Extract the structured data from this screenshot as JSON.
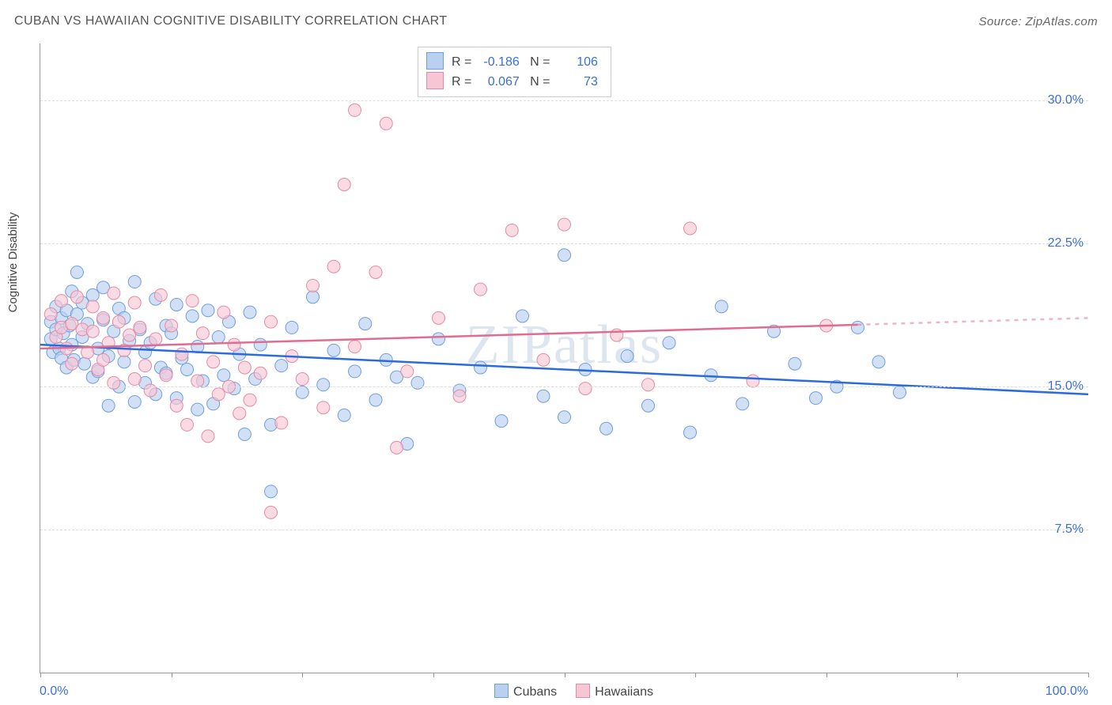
{
  "title": "CUBAN VS HAWAIIAN COGNITIVE DISABILITY CORRELATION CHART",
  "source": "Source: ZipAtlas.com",
  "watermark": "ZIPatlas",
  "ylabel": "Cognitive Disability",
  "chart": {
    "type": "scatter",
    "xlim": [
      0,
      100
    ],
    "ylim": [
      0,
      33
    ],
    "x_tick_positions": [
      0,
      12.5,
      25,
      37.5,
      50,
      62.5,
      75,
      87.5,
      100
    ],
    "x_tick_labels_show": [
      "0.0%",
      "",
      "",
      "",
      "",
      "",
      "",
      "",
      "100.0%"
    ],
    "y_gridlines": [
      7.5,
      15.0,
      22.5,
      30.0
    ],
    "y_tick_labels": [
      "7.5%",
      "15.0%",
      "22.5%",
      "30.0%"
    ],
    "grid_color": "#dddddd",
    "axis_color": "#999999",
    "background_color": "#ffffff",
    "marker_radius": 8,
    "marker_stroke_width": 1,
    "trend_line_width": 2.5
  },
  "series": [
    {
      "name": "Cubans",
      "fill": "#b9d0f0",
      "stroke": "#6f9fe0",
      "fill_opacity": 0.65,
      "R": "-0.186",
      "N": "106",
      "trend": {
        "y_at_x0": 17.2,
        "y_at_x100": 14.6,
        "dash_after_x": 100,
        "color": "#2b6adf"
      },
      "points": [
        [
          1,
          17.5
        ],
        [
          1,
          18.4
        ],
        [
          1.2,
          16.8
        ],
        [
          1.5,
          18
        ],
        [
          1.5,
          19.2
        ],
        [
          1.8,
          17
        ],
        [
          2,
          18.6
        ],
        [
          2,
          16.5
        ],
        [
          2.2,
          17.8
        ],
        [
          2.5,
          19
        ],
        [
          2.5,
          16
        ],
        [
          2.8,
          18.2
        ],
        [
          3,
          17.2
        ],
        [
          3,
          20
        ],
        [
          3.2,
          16.4
        ],
        [
          3.5,
          18.8
        ],
        [
          3.5,
          21
        ],
        [
          4,
          17.6
        ],
        [
          4,
          19.4
        ],
        [
          4.2,
          16.2
        ],
        [
          4.5,
          18.3
        ],
        [
          5,
          15.5
        ],
        [
          5,
          19.8
        ],
        [
          5.5,
          17
        ],
        [
          5.5,
          15.8
        ],
        [
          6,
          20.2
        ],
        [
          6,
          18.5
        ],
        [
          6.5,
          16.6
        ],
        [
          6.5,
          14
        ],
        [
          7,
          17.9
        ],
        [
          7.5,
          19.1
        ],
        [
          7.5,
          15
        ],
        [
          8,
          18.6
        ],
        [
          8,
          16.3
        ],
        [
          8.5,
          17.4
        ],
        [
          9,
          14.2
        ],
        [
          9,
          20.5
        ],
        [
          9.5,
          18
        ],
        [
          10,
          16.8
        ],
        [
          10,
          15.2
        ],
        [
          10.5,
          17.3
        ],
        [
          11,
          19.6
        ],
        [
          11,
          14.6
        ],
        [
          11.5,
          16
        ],
        [
          12,
          18.2
        ],
        [
          12,
          15.7
        ],
        [
          12.5,
          17.8
        ],
        [
          13,
          19.3
        ],
        [
          13,
          14.4
        ],
        [
          13.5,
          16.5
        ],
        [
          14,
          15.9
        ],
        [
          14.5,
          18.7
        ],
        [
          15,
          17.1
        ],
        [
          15,
          13.8
        ],
        [
          15.5,
          15.3
        ],
        [
          16,
          19
        ],
        [
          16.5,
          14.1
        ],
        [
          17,
          17.6
        ],
        [
          17.5,
          15.6
        ],
        [
          18,
          18.4
        ],
        [
          18.5,
          14.9
        ],
        [
          19,
          16.7
        ],
        [
          19.5,
          12.5
        ],
        [
          20,
          18.9
        ],
        [
          20.5,
          15.4
        ],
        [
          21,
          17.2
        ],
        [
          22,
          13
        ],
        [
          22,
          9.5
        ],
        [
          23,
          16.1
        ],
        [
          24,
          18.1
        ],
        [
          25,
          14.7
        ],
        [
          26,
          19.7
        ],
        [
          27,
          15.1
        ],
        [
          28,
          16.9
        ],
        [
          29,
          13.5
        ],
        [
          30,
          15.8
        ],
        [
          31,
          18.3
        ],
        [
          32,
          14.3
        ],
        [
          33,
          16.4
        ],
        [
          34,
          15.5
        ],
        [
          35,
          12
        ],
        [
          36,
          15.2
        ],
        [
          38,
          17.5
        ],
        [
          40,
          14.8
        ],
        [
          42,
          16
        ],
        [
          44,
          13.2
        ],
        [
          46,
          18.7
        ],
        [
          48,
          14.5
        ],
        [
          50,
          13.4
        ],
        [
          50,
          21.9
        ],
        [
          52,
          15.9
        ],
        [
          54,
          12.8
        ],
        [
          56,
          16.6
        ],
        [
          58,
          14
        ],
        [
          60,
          17.3
        ],
        [
          62,
          12.6
        ],
        [
          64,
          15.6
        ],
        [
          65,
          19.2
        ],
        [
          67,
          14.1
        ],
        [
          70,
          17.9
        ],
        [
          72,
          16.2
        ],
        [
          74,
          14.4
        ],
        [
          76,
          15.0
        ],
        [
          78,
          18.1
        ],
        [
          80,
          16.3
        ],
        [
          82,
          14.7
        ]
      ]
    },
    {
      "name": "Hawaiians",
      "fill": "#f7c6d4",
      "stroke": "#e58aa6",
      "fill_opacity": 0.65,
      "R": "0.067",
      "N": "73",
      "trend": {
        "y_at_x0": 17.0,
        "y_at_x100": 18.6,
        "dash_after_x": 78,
        "color": "#e06c90"
      },
      "points": [
        [
          1,
          18.8
        ],
        [
          1.5,
          17.6
        ],
        [
          2,
          18.1
        ],
        [
          2,
          19.5
        ],
        [
          2.5,
          17
        ],
        [
          3,
          18.3
        ],
        [
          3,
          16.2
        ],
        [
          3.5,
          19.7
        ],
        [
          4,
          18
        ],
        [
          4.5,
          16.8
        ],
        [
          5,
          17.9
        ],
        [
          5,
          19.2
        ],
        [
          5.5,
          15.9
        ],
        [
          6,
          18.6
        ],
        [
          6,
          16.4
        ],
        [
          6.5,
          17.3
        ],
        [
          7,
          19.9
        ],
        [
          7,
          15.2
        ],
        [
          7.5,
          18.4
        ],
        [
          8,
          16.9
        ],
        [
          8.5,
          17.7
        ],
        [
          9,
          15.4
        ],
        [
          9,
          19.4
        ],
        [
          9.5,
          18.1
        ],
        [
          10,
          16.1
        ],
        [
          10.5,
          14.8
        ],
        [
          11,
          17.5
        ],
        [
          11.5,
          19.8
        ],
        [
          12,
          15.6
        ],
        [
          12.5,
          18.2
        ],
        [
          13,
          14
        ],
        [
          13.5,
          16.7
        ],
        [
          14,
          13
        ],
        [
          14.5,
          19.5
        ],
        [
          15,
          15.3
        ],
        [
          15.5,
          17.8
        ],
        [
          16,
          12.4
        ],
        [
          16.5,
          16.3
        ],
        [
          17,
          14.6
        ],
        [
          17.5,
          18.9
        ],
        [
          18,
          15
        ],
        [
          18.5,
          17.2
        ],
        [
          19,
          13.6
        ],
        [
          19.5,
          16
        ],
        [
          20,
          14.3
        ],
        [
          21,
          15.7
        ],
        [
          22,
          18.4
        ],
        [
          22,
          8.4
        ],
        [
          23,
          13.1
        ],
        [
          24,
          16.6
        ],
        [
          25,
          15.4
        ],
        [
          26,
          20.3
        ],
        [
          27,
          13.9
        ],
        [
          28,
          21.3
        ],
        [
          29,
          25.6
        ],
        [
          30,
          17.1
        ],
        [
          30,
          29.5
        ],
        [
          32,
          21
        ],
        [
          33,
          28.8
        ],
        [
          34,
          11.8
        ],
        [
          35,
          15.8
        ],
        [
          38,
          18.6
        ],
        [
          40,
          14.5
        ],
        [
          42,
          20.1
        ],
        [
          45,
          23.2
        ],
        [
          48,
          16.4
        ],
        [
          50,
          23.5
        ],
        [
          52,
          14.9
        ],
        [
          55,
          17.7
        ],
        [
          58,
          15.1
        ],
        [
          62,
          23.3
        ],
        [
          68,
          15.3
        ],
        [
          75,
          18.2
        ]
      ]
    }
  ],
  "bottom_legend": [
    {
      "label": "Cubans",
      "fill": "#b9d0f0",
      "stroke": "#6f9fe0"
    },
    {
      "label": "Hawaiians",
      "fill": "#f7c6d4",
      "stroke": "#e58aa6"
    }
  ],
  "stats_labels": {
    "R": "R =",
    "N": "N ="
  }
}
